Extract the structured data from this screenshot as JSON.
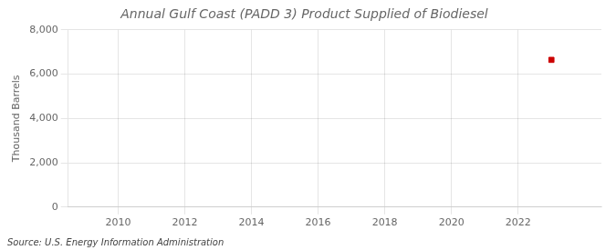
{
  "chart_data": {
    "type": "scatter",
    "title": "Annual Gulf Coast (PADD 3) Product Supplied of Biodiesel",
    "ylabel": "Thousand Barrels",
    "annotations": [
      "Source: U.S. Energy Information Administration"
    ],
    "x": [
      2023
    ],
    "values": [
      6644
    ],
    "color": "#cc0000",
    "marker": "square",
    "xlim": [
      2008.5,
      2024.5
    ],
    "xticks": [
      2010,
      2012,
      2014,
      2016,
      2018,
      2020,
      2022
    ],
    "ylim": [
      0,
      8000
    ],
    "yticks": [
      0,
      {
        "value": 2000,
        "label": "2,000"
      },
      {
        "value": 4000,
        "label": "4,000"
      },
      {
        "value": 6000,
        "label": "6,000"
      },
      {
        "value": 8000,
        "label": "8,000"
      }
    ],
    "grid": true
  }
}
